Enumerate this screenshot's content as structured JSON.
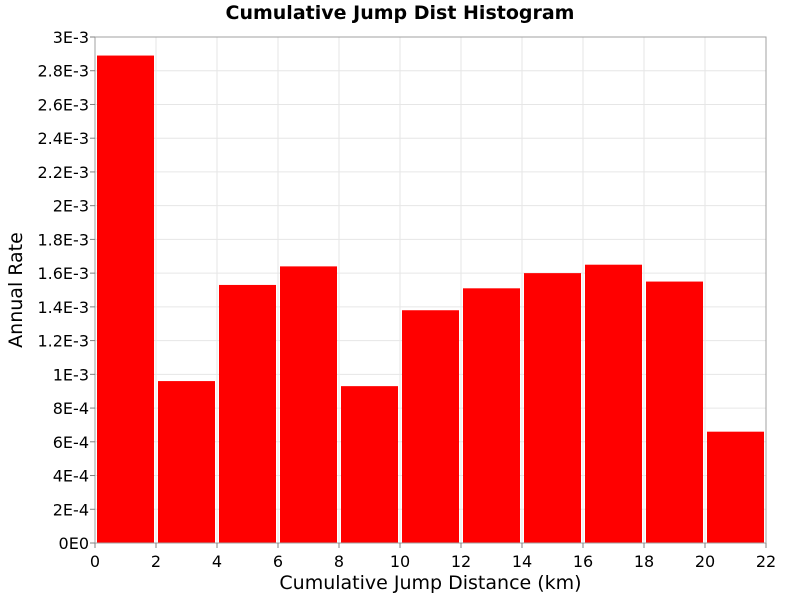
{
  "chart_data": {
    "type": "bar",
    "title": "Cumulative Jump Dist Histogram",
    "xlabel": "Cumulative Jump Distance (km)",
    "ylabel": "Annual Rate",
    "xlim": [
      0,
      22
    ],
    "ylim": [
      0,
      0.003
    ],
    "x_ticks": [
      0,
      2,
      4,
      6,
      8,
      10,
      12,
      14,
      16,
      18,
      20,
      22
    ],
    "x_tick_labels": [
      "0",
      "2",
      "4",
      "6",
      "8",
      "10",
      "12",
      "14",
      "16",
      "18",
      "20",
      "22"
    ],
    "y_ticks": [
      0,
      0.0002,
      0.0004,
      0.0006,
      0.0008,
      0.001,
      0.0012,
      0.0014,
      0.0016,
      0.0018,
      0.002,
      0.0022,
      0.0024,
      0.0026,
      0.0028,
      0.003
    ],
    "y_tick_labels": [
      "0E0",
      "2E-4",
      "4E-4",
      "6E-4",
      "8E-4",
      "1E-3",
      "1.2E-3",
      "1.4E-3",
      "1.6E-3",
      "1.8E-3",
      "2E-3",
      "2.2E-3",
      "2.4E-3",
      "2.6E-3",
      "2.8E-3",
      "3E-3"
    ],
    "grid": true,
    "bar_color": "#ff0000",
    "bins": [
      {
        "x_start": 0,
        "x_end": 2,
        "value": 0.00289
      },
      {
        "x_start": 2,
        "x_end": 4,
        "value": 0.00096
      },
      {
        "x_start": 4,
        "x_end": 6,
        "value": 0.00153
      },
      {
        "x_start": 6,
        "x_end": 8,
        "value": 0.00164
      },
      {
        "x_start": 8,
        "x_end": 10,
        "value": 0.00093
      },
      {
        "x_start": 10,
        "x_end": 12,
        "value": 0.00138
      },
      {
        "x_start": 12,
        "x_end": 14,
        "value": 0.00151
      },
      {
        "x_start": 14,
        "x_end": 16,
        "value": 0.0016
      },
      {
        "x_start": 16,
        "x_end": 18,
        "value": 0.00165
      },
      {
        "x_start": 18,
        "x_end": 20,
        "value": 0.00155
      },
      {
        "x_start": 20,
        "x_end": 22,
        "value": 0.00066
      }
    ]
  }
}
